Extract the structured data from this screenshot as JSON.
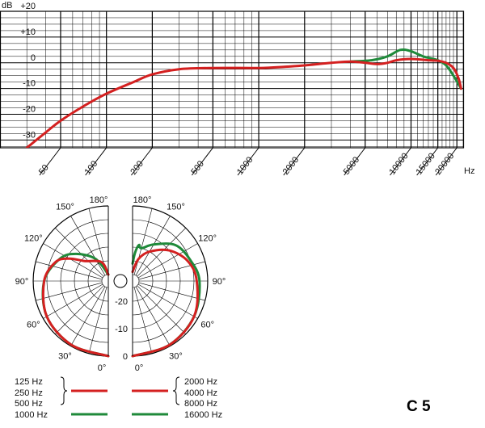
{
  "chart_data": [
    {
      "type": "line",
      "ylabel": "dB",
      "xunit": "Hz",
      "yticks": [
        "+20",
        "+10",
        "0",
        "-10",
        "-20",
        "-30"
      ],
      "ylim": [
        -33,
        20
      ],
      "xlim": [
        20,
        22000
      ],
      "xscale": "log",
      "xticks": [
        "20",
        "50",
        "100",
        "200",
        "500",
        "1000",
        "2000",
        "5000",
        "10000",
        "15000",
        "20000"
      ],
      "grid": true,
      "series": [
        {
          "color": "#d42020",
          "points": [
            [
              30,
              -33
            ],
            [
              40,
              -27
            ],
            [
              50,
              -22.5
            ],
            [
              70,
              -17
            ],
            [
              100,
              -12
            ],
            [
              150,
              -7.5
            ],
            [
              200,
              -4.5
            ],
            [
              300,
              -2.5
            ],
            [
              500,
              -2
            ],
            [
              1000,
              -2
            ],
            [
              1500,
              -1.5
            ],
            [
              2000,
              -1
            ],
            [
              3000,
              0
            ],
            [
              4000,
              0.5
            ],
            [
              5000,
              0
            ],
            [
              6000,
              -0.5
            ],
            [
              7000,
              0
            ],
            [
              8000,
              1
            ],
            [
              10000,
              1.5
            ],
            [
              13000,
              1
            ],
            [
              15000,
              0.8
            ],
            [
              17000,
              0
            ],
            [
              19000,
              -2
            ],
            [
              20500,
              -6
            ],
            [
              21300,
              -10
            ]
          ]
        },
        {
          "color": "#1f8a3a",
          "points": [
            [
              4000,
              0.5
            ],
            [
              5500,
              1
            ],
            [
              7000,
              2.5
            ],
            [
              8500,
              5
            ],
            [
              10000,
              4.5
            ],
            [
              12000,
              2.5
            ],
            [
              15000,
              1
            ],
            [
              17000,
              -1
            ],
            [
              19000,
              -5
            ],
            [
              21300,
              -10
            ]
          ]
        }
      ]
    },
    {
      "type": "polar",
      "angle_labels": [
        "0°",
        "30°",
        "60°",
        "90°",
        "120°",
        "150°",
        "180°"
      ],
      "radial_labels": [
        "0",
        "-10",
        "-20"
      ],
      "left_series": [
        {
          "label": "125 Hz",
          "color": "#d42020",
          "points": [
            [
              0,
              0
            ],
            [
              30,
              -0.5
            ],
            [
              60,
              -1.5
            ],
            [
              90,
              -4
            ],
            [
              110,
              -7
            ],
            [
              120,
              -11
            ],
            [
              130,
              -16
            ],
            [
              160,
              -20
            ],
            [
              180,
              -25
            ]
          ]
        },
        {
          "label": "1000 Hz",
          "color": "#1f8a3a",
          "points": [
            [
              0,
              0
            ],
            [
              30,
              -0.5
            ],
            [
              60,
              -1.5
            ],
            [
              90,
              -4
            ],
            [
              115,
              -8
            ],
            [
              130,
              -12
            ],
            [
              150,
              -18
            ],
            [
              180,
              -25
            ]
          ]
        }
      ],
      "right_series": [
        {
          "label": "4000 Hz",
          "color": "#d42020",
          "points": [
            [
              0,
              0
            ],
            [
              30,
              -0.5
            ],
            [
              60,
              -1.5
            ],
            [
              90,
              -4
            ],
            [
              110,
              -6
            ],
            [
              130,
              -10
            ],
            [
              150,
              -15
            ],
            [
              165,
              -19
            ],
            [
              180,
              -24
            ]
          ]
        },
        {
          "label": "16000 Hz",
          "color": "#1f8a3a",
          "points": [
            [
              0,
              0
            ],
            [
              30,
              -0.5
            ],
            [
              60,
              -1.5
            ],
            [
              90,
              -3
            ],
            [
              110,
              -5
            ],
            [
              130,
              -7
            ],
            [
              150,
              -12
            ],
            [
              165,
              -15
            ],
            [
              170,
              -14
            ],
            [
              175,
              -17
            ],
            [
              180,
              -21
            ]
          ]
        }
      ]
    }
  ],
  "legend": {
    "left": [
      "125 Hz",
      "250 Hz",
      "500 Hz",
      "1000 Hz"
    ],
    "right": [
      "2000 Hz",
      "4000 Hz",
      "8000 Hz",
      "16000 Hz"
    ]
  },
  "model": "C 5",
  "colors": {
    "red": "#d42020",
    "green": "#1f8a3a"
  }
}
